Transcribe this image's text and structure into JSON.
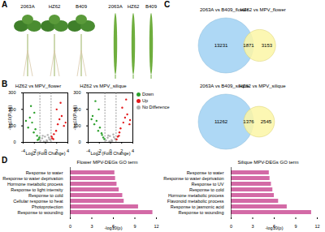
{
  "panel_labels": [
    "A",
    "B",
    "C",
    "D"
  ],
  "panel_a": {
    "plant_labels": [
      "2063A",
      "HZ62",
      "B409"
    ],
    "silique_labels": [
      "2063A",
      "HZ62",
      "B409"
    ]
  },
  "panel_c": [
    {
      "left_set": "2063A vs B409_flower",
      "right_set": "HZ62 vs MPV_flower",
      "left_only": 13231,
      "overlap": 1871,
      "right_only": 3153,
      "left_color": "#aed8f5",
      "right_color": "#fbf6a6"
    },
    {
      "left_set": "2063A vs B409_silique",
      "right_set": "HZ62 vs MPV_silique",
      "left_only": 11262,
      "overlap": 1376,
      "right_only": 2545,
      "left_color": "#aed8f5",
      "right_color": "#fbf6a6"
    }
  ],
  "chart_data": [
    {
      "type": "scatter",
      "title": "HZ62 vs MPV_flower",
      "x_label": "Log2 (Fold Change)",
      "y_label": "-log10(P.adj)",
      "xlim": [
        -4,
        4
      ],
      "ylim": [
        0,
        300
      ],
      "xticks": [
        -4,
        -2,
        0,
        2,
        4
      ],
      "yticks": [
        0,
        100,
        200,
        300
      ],
      "thresholds": [
        -1,
        1
      ],
      "series": [
        {
          "name": "Down",
          "color": "#2ca02c",
          "x": [
            -1.2,
            -1.5,
            -1.8,
            -2.1,
            -2.4,
            -2.8,
            -3.1,
            -1.4,
            -2.0,
            -2.6,
            -3.5,
            -1.1
          ],
          "values": [
            20,
            40,
            80,
            60,
            120,
            150,
            90,
            15,
            180,
            220,
            130,
            30
          ]
        },
        {
          "name": "Up",
          "color": "#e31a1c",
          "x": [
            1.2,
            1.5,
            1.9,
            2.2,
            2.5,
            2.9,
            3.3,
            1.4,
            2.0,
            2.7,
            3.6,
            1.1
          ],
          "values": [
            25,
            50,
            70,
            110,
            140,
            160,
            100,
            20,
            200,
            240,
            120,
            35
          ]
        },
        {
          "name": "No Difference",
          "color": "#b0b0b0",
          "x": [
            -0.9,
            -0.6,
            -0.3,
            0,
            0.3,
            0.6,
            0.9,
            -0.5,
            0.2,
            0.7,
            -0.1,
            0.4
          ],
          "values": [
            10,
            25,
            5,
            2,
            8,
            30,
            15,
            40,
            12,
            20,
            35,
            45
          ]
        }
      ]
    },
    {
      "type": "scatter",
      "title": "HZ62 vs MPV_silique",
      "x_label": "Log2 (Fold Change)",
      "y_label": "-log10(P.adj)",
      "xlim": [
        -4,
        4
      ],
      "ylim": [
        0,
        300
      ],
      "xticks": [
        -4,
        -2,
        0,
        2,
        4
      ],
      "yticks": [
        0,
        100,
        200,
        300
      ],
      "thresholds": [
        -1,
        1
      ],
      "legend": "right",
      "series": [
        {
          "name": "Down",
          "color": "#2ca02c",
          "x": [
            -1.3,
            -1.6,
            -1.9,
            -2.2,
            -2.5,
            -2.9,
            -3.2,
            -1.1,
            -2.1,
            -2.7,
            -3.4,
            -1.5
          ],
          "values": [
            30,
            55,
            90,
            70,
            130,
            110,
            160,
            20,
            200,
            250,
            140,
            45
          ]
        },
        {
          "name": "Up",
          "color": "#e31a1c",
          "x": [
            1.3,
            1.6,
            1.8,
            2.3,
            2.6,
            3.0,
            3.4,
            1.1,
            2.1,
            2.8,
            3.5,
            1.5
          ],
          "values": [
            35,
            60,
            85,
            120,
            150,
            170,
            110,
            18,
            210,
            260,
            135,
            40
          ]
        },
        {
          "name": "No Difference",
          "color": "#b0b0b0",
          "x": [
            -0.8,
            -0.5,
            -0.2,
            0.1,
            0.3,
            0.6,
            0.9,
            -0.4,
            0.2,
            0.8,
            -0.1,
            0.5
          ],
          "values": [
            12,
            28,
            6,
            3,
            9,
            32,
            18,
            42,
            14,
            22,
            38,
            48
          ]
        }
      ]
    },
    {
      "type": "bar",
      "orientation": "horizontal",
      "title": "Flower MPV-DEGs GO term",
      "x_label": "-log10(p)",
      "xlim": [
        0,
        12
      ],
      "xticks": [
        0,
        3,
        6,
        9,
        12
      ],
      "color": "#d36aa6",
      "categories": [
        "Response to water",
        "Response to water deprivation",
        "Hormone metabolic process",
        "Response to light intensity",
        "Response to cold",
        "Cellular response to heat",
        "Photoprotection",
        "Response to wounding"
      ],
      "values": [
        6.2,
        6.3,
        6.5,
        6.8,
        7.3,
        7.5,
        9.5,
        11.5
      ]
    },
    {
      "type": "bar",
      "orientation": "horizontal",
      "title": "Silique MPV-DEGs GO term",
      "x_label": "-log10(p)",
      "xlim": [
        0,
        12
      ],
      "xticks": [
        0,
        3,
        6,
        9,
        12
      ],
      "color": "#d36aa6",
      "categories": [
        "Response to water",
        "Response to water deprivation",
        "Response to UV",
        "Response to cold",
        "Hormone metabolic process",
        "Flavonoid metabolic process",
        "Response to jasmonic acid",
        "Response to wounding"
      ],
      "values": [
        5.3,
        5.4,
        5.6,
        5.8,
        6.0,
        6.6,
        7.8,
        11.2
      ]
    }
  ]
}
